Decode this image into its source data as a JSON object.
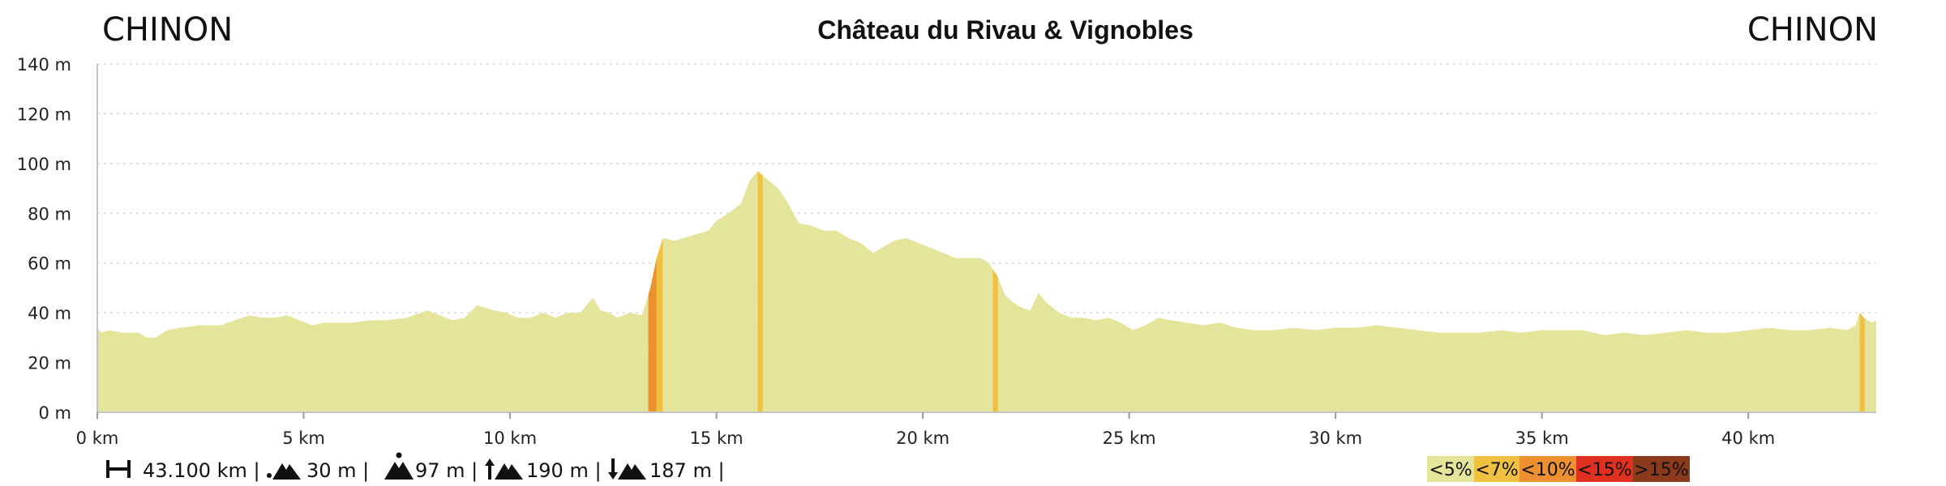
{
  "header": {
    "start_place": "CHINON",
    "title": "Château du Rivau & Vignobles",
    "end_place": "CHINON"
  },
  "stats": {
    "distance": "43.100 km |",
    "min_altitude": "30 m |",
    "max_altitude": "97 m |",
    "ascent": "190 m |",
    "descent": "187 m |"
  },
  "legend": [
    {
      "label": "<5%",
      "color": "#e4e49a"
    },
    {
      "label": "<7%",
      "color": "#f0c040"
    },
    {
      "label": "<10%",
      "color": "#ec9030"
    },
    {
      "label": "<15%",
      "color": "#e03020"
    },
    {
      "label": ">15%",
      "color": "#8c3a1c"
    }
  ],
  "chart_data": {
    "type": "area",
    "title": "Château du Rivau & Vignobles",
    "xlabel": "",
    "ylabel": "",
    "xlim": [
      0,
      43.1
    ],
    "ylim": [
      0,
      140
    ],
    "grid": true,
    "x_ticks": [
      {
        "value": 0,
        "label": "0 km"
      },
      {
        "value": 5,
        "label": "5 km"
      },
      {
        "value": 10,
        "label": "10 km"
      },
      {
        "value": 15,
        "label": "15 km"
      },
      {
        "value": 20,
        "label": "20 km"
      },
      {
        "value": 25,
        "label": "25 km"
      },
      {
        "value": 30,
        "label": "30 km"
      },
      {
        "value": 35,
        "label": "35 km"
      },
      {
        "value": 40,
        "label": "40 km"
      }
    ],
    "y_ticks": [
      {
        "value": 0,
        "label": "0 m"
      },
      {
        "value": 20,
        "label": "20 m"
      },
      {
        "value": 40,
        "label": "40 m"
      },
      {
        "value": 60,
        "label": "60 m"
      },
      {
        "value": 80,
        "label": "80 m"
      },
      {
        "value": 100,
        "label": "100 m"
      },
      {
        "value": 120,
        "label": "120 m"
      },
      {
        "value": 140,
        "label": "140 m"
      }
    ],
    "x": [
      0,
      0.1,
      0.3,
      0.6,
      1.0,
      1.2,
      1.4,
      1.7,
      2.0,
      2.5,
      3.0,
      3.5,
      3.7,
      4.0,
      4.3,
      4.6,
      4.9,
      5.2,
      5.5,
      5.8,
      6.2,
      6.6,
      7.0,
      7.5,
      8.0,
      8.3,
      8.6,
      8.9,
      9.2,
      9.6,
      9.9,
      10.2,
      10.5,
      10.8,
      11.1,
      11.4,
      11.7,
      12.0,
      12.2,
      12.4,
      12.6,
      12.9,
      13.2,
      13.4,
      13.55,
      13.7,
      14.0,
      14.4,
      14.8,
      15.0,
      15.3,
      15.6,
      15.8,
      16.0,
      16.2,
      16.5,
      16.7,
      17.0,
      17.3,
      17.6,
      17.9,
      18.2,
      18.5,
      18.8,
      19.0,
      19.3,
      19.6,
      19.9,
      20.2,
      20.5,
      20.8,
      21.1,
      21.4,
      21.6,
      21.8,
      22.0,
      22.2,
      22.4,
      22.6,
      22.8,
      23.0,
      23.3,
      23.6,
      23.9,
      24.2,
      24.5,
      24.8,
      25.1,
      25.4,
      25.7,
      26.0,
      26.4,
      26.8,
      27.2,
      27.6,
      28.0,
      28.5,
      29.0,
      29.5,
      30.0,
      30.5,
      31.0,
      31.5,
      32.0,
      32.5,
      33.0,
      33.5,
      34.0,
      34.5,
      35.0,
      35.5,
      36.0,
      36.5,
      37.0,
      37.5,
      38.0,
      38.5,
      39.0,
      39.5,
      40.0,
      40.5,
      41.0,
      41.5,
      42.0,
      42.4,
      42.6,
      42.7,
      42.8,
      42.9,
      43.0,
      43.1
    ],
    "y": [
      34,
      32,
      33,
      32,
      32,
      30,
      30,
      33,
      34,
      35,
      35,
      38,
      39,
      38,
      38,
      39,
      37,
      35,
      36,
      36,
      36,
      37,
      37,
      38,
      41,
      39,
      37,
      38,
      43,
      41,
      40,
      38,
      38,
      40,
      38,
      40,
      40,
      46,
      41,
      40,
      38,
      40,
      39,
      50,
      62,
      70,
      69,
      71,
      73,
      77,
      80,
      84,
      93,
      97,
      94,
      90,
      85,
      76,
      75,
      73,
      73,
      70,
      68,
      64,
      66,
      69,
      70,
      68,
      66,
      64,
      62,
      62,
      62,
      60,
      55,
      47,
      44,
      42,
      41,
      48,
      44,
      40,
      38,
      38,
      37,
      38,
      36,
      33,
      35,
      38,
      37,
      36,
      35,
      36,
      34,
      33,
      33,
      34,
      33,
      34,
      34,
      35,
      34,
      33,
      32,
      32,
      32,
      33,
      32,
      33,
      33,
      33,
      31,
      32,
      31,
      32,
      33,
      32,
      32,
      33,
      34,
      33,
      33,
      34,
      33,
      35,
      40,
      38,
      37,
      36,
      37
    ],
    "steep_segments": [
      {
        "from": 13.35,
        "to": 13.55,
        "class": "<10%"
      },
      {
        "from": 13.55,
        "to": 13.7,
        "class": "<7%"
      },
      {
        "from": 16.0,
        "to": 16.12,
        "class": "<7%"
      },
      {
        "from": 21.7,
        "to": 21.82,
        "class": "<7%"
      },
      {
        "from": 42.7,
        "to": 42.82,
        "class": "<7%"
      }
    ]
  }
}
